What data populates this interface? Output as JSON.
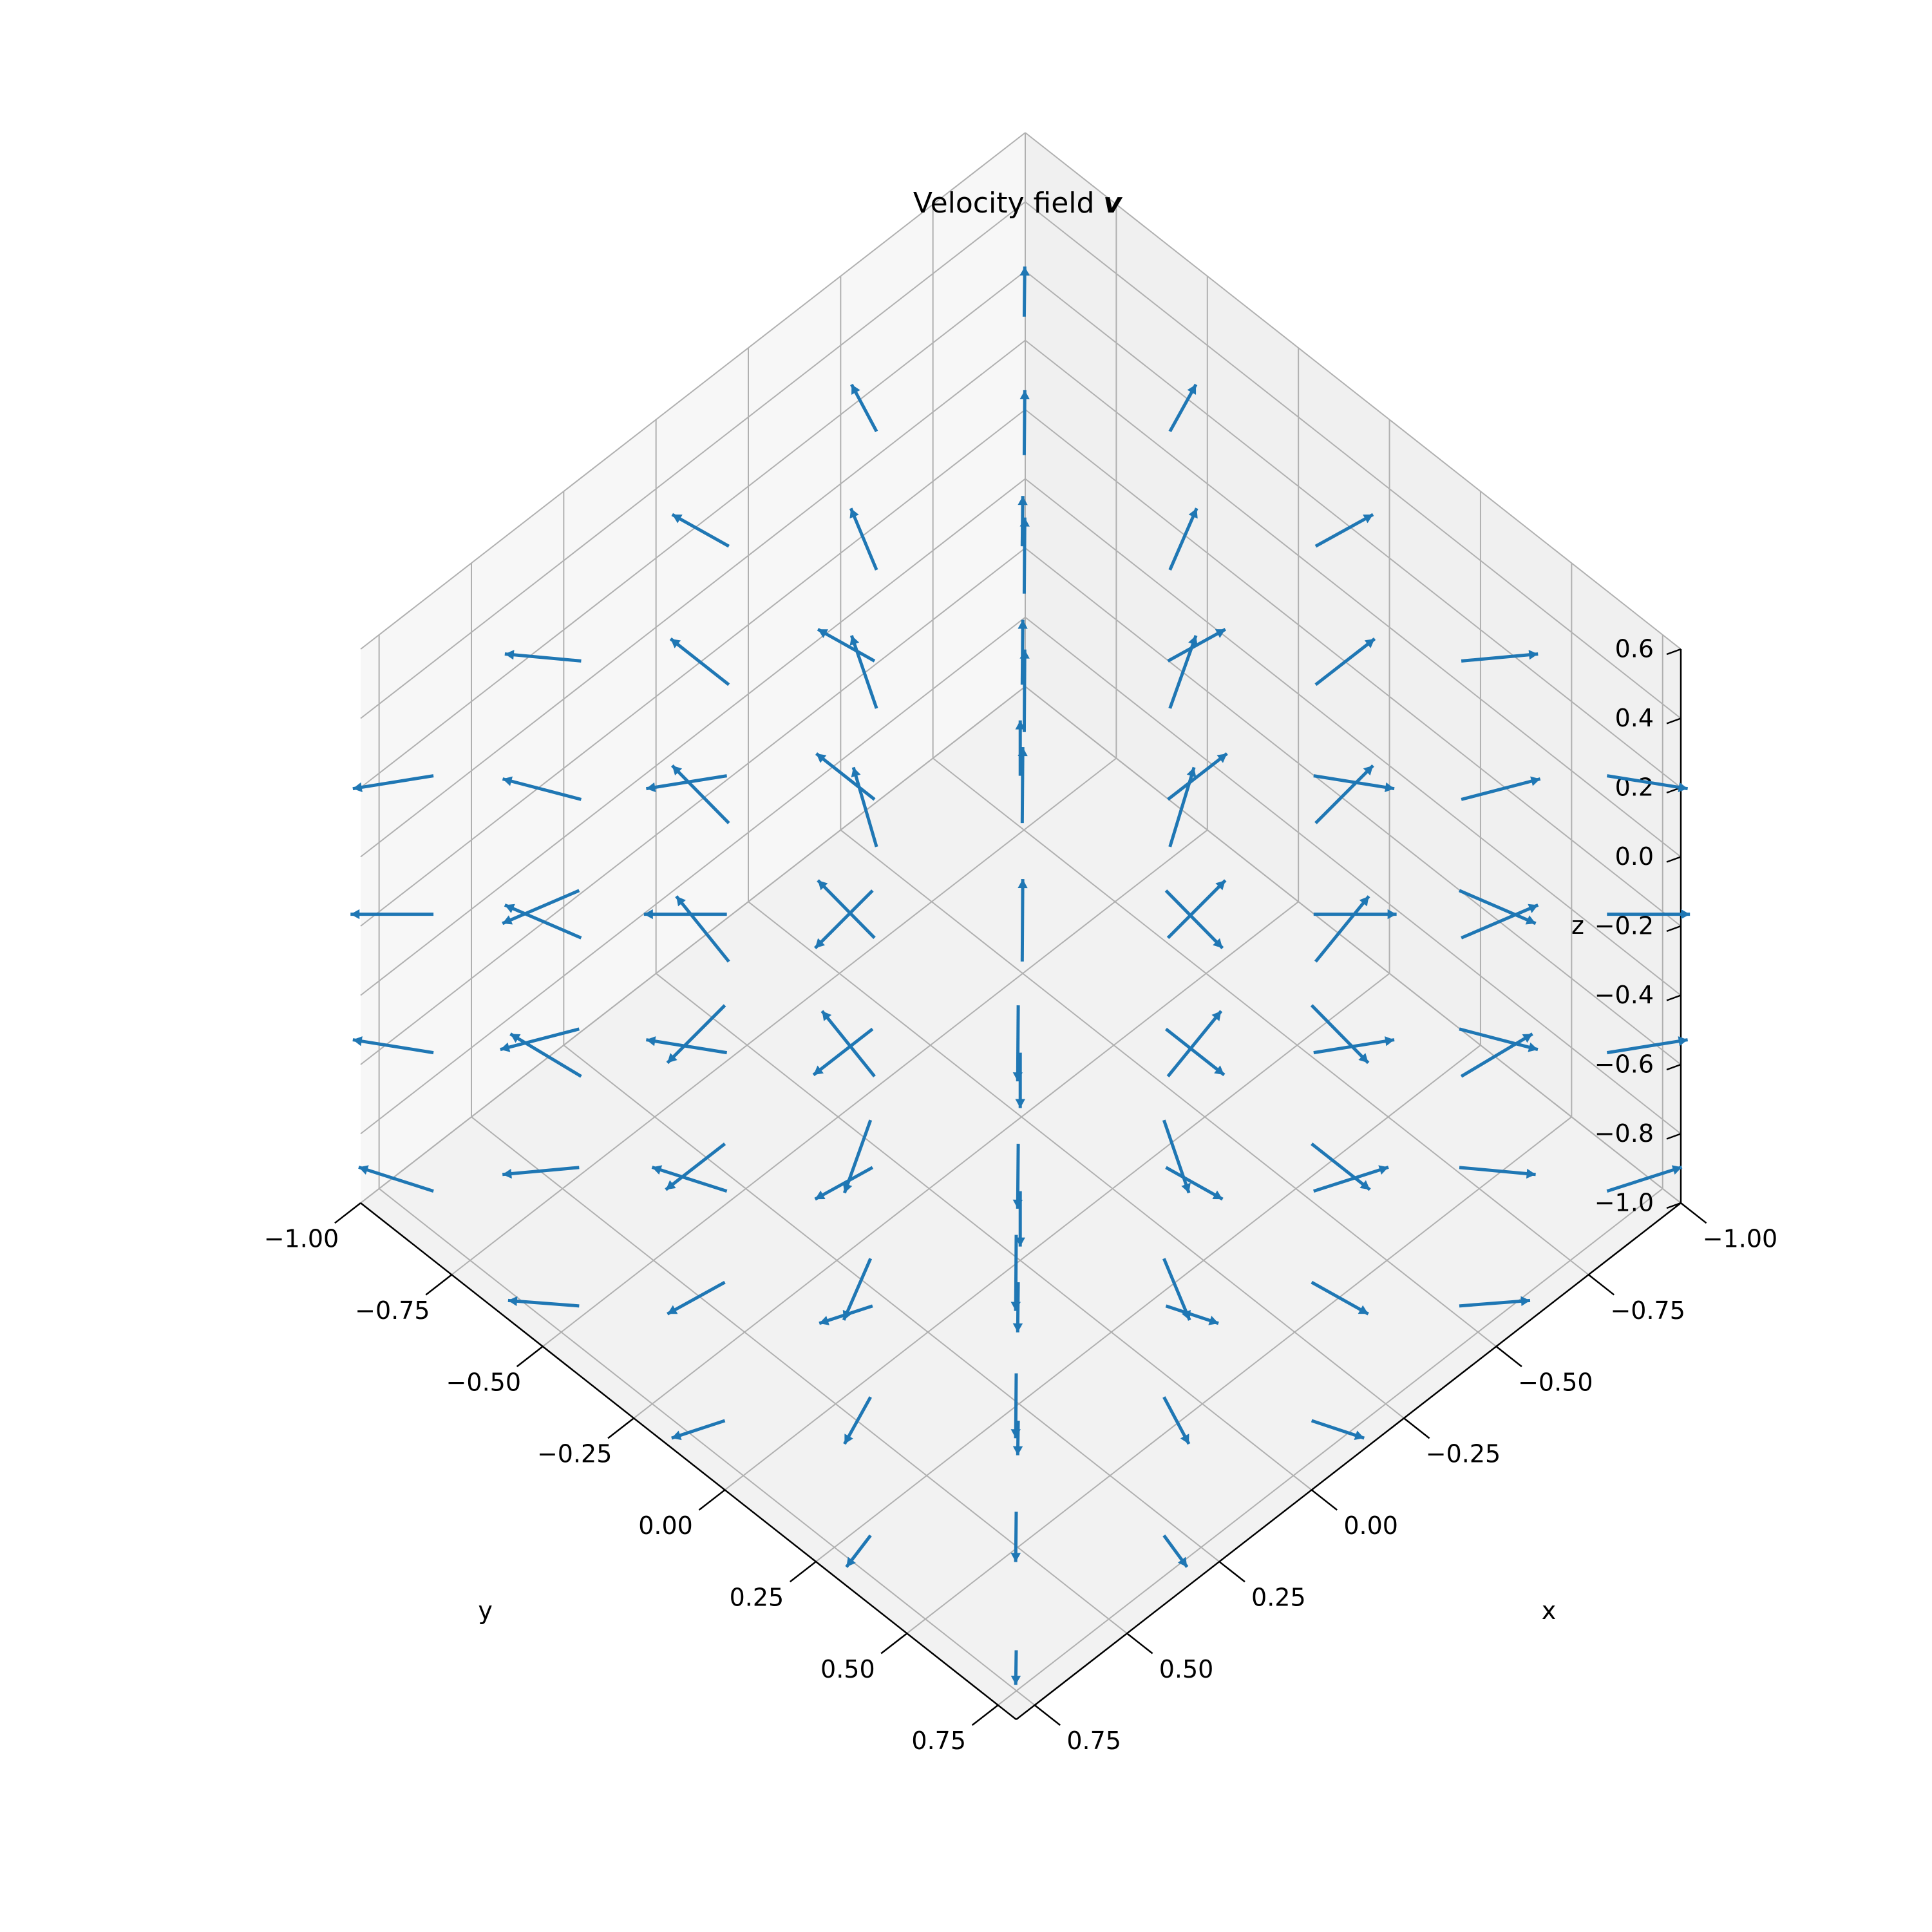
{
  "chart_data": {
    "type": "quiver3d",
    "title": "Velocity field ",
    "title_symbol": "v",
    "xlabel": "x",
    "ylabel": "y",
    "zlabel": "z",
    "xlim": [
      -1.0,
      0.8
    ],
    "ylim": [
      -1.0,
      0.8
    ],
    "zlim": [
      -1.0,
      0.6
    ],
    "x_ticks": [
      "−1.00",
      "−0.75",
      "−0.50",
      "−0.25",
      "0.00",
      "0.25",
      "0.50",
      "0.75"
    ],
    "y_ticks": [
      "−1.00",
      "−0.75",
      "−0.50",
      "−0.25",
      "0.00",
      "0.25",
      "0.50",
      "0.75"
    ],
    "z_ticks": [
      "−1.0",
      "−0.8",
      "−0.6",
      "−0.4",
      "−0.2",
      "0.0",
      "0.2",
      "0.4",
      "0.6"
    ],
    "grid": true,
    "view": {
      "elevation_deg": 35,
      "azimuth_deg": 45
    },
    "sampling": {
      "x": [
        -0.8,
        0.8,
        0.4
      ],
      "y": [
        -0.8,
        0.8,
        0.4
      ],
      "z": [
        -0.8,
        0.4,
        0.4
      ]
    },
    "field": "radial about the z-axis through x = y = 0: v = (x, y, 0)/r, with vertical sign(z) arrows on the axis",
    "arrow_color": "#1f77b4"
  }
}
